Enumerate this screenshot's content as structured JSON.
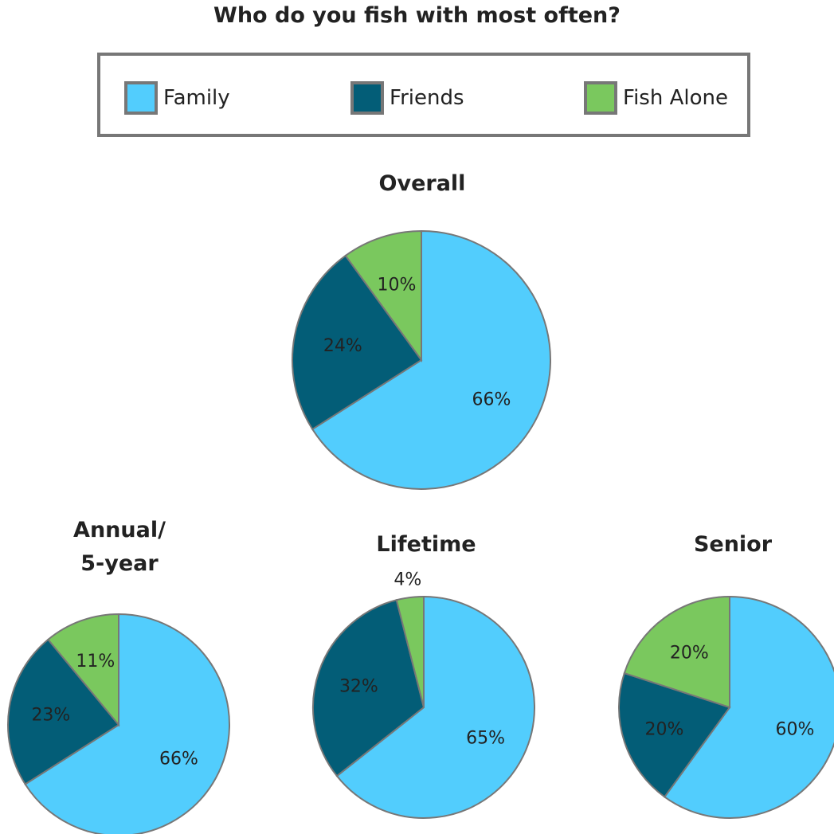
{
  "title": "Who do you fish with most often?",
  "colors": {
    "Family": "#52cdfd",
    "Friends": "#035d77",
    "Fish Alone": "#7ac85e",
    "border": "#777777"
  },
  "legend": [
    {
      "label": "Family",
      "color": "#52cdfd"
    },
    {
      "label": "Friends",
      "color": "#035d77"
    },
    {
      "label": "Fish Alone",
      "color": "#7ac85e"
    }
  ],
  "chart_data": [
    {
      "type": "pie",
      "title": "Overall",
      "categories": [
        "Family",
        "Friends",
        "Fish Alone"
      ],
      "values": [
        66,
        24,
        10
      ],
      "labels": [
        "66%",
        "24%",
        "10%"
      ]
    },
    {
      "type": "pie",
      "title": "Annual/\n5-year",
      "categories": [
        "Family",
        "Friends",
        "Fish Alone"
      ],
      "values": [
        66,
        23,
        11
      ],
      "labels": [
        "66%",
        "23%",
        "11%"
      ]
    },
    {
      "type": "pie",
      "title": "Lifetime",
      "categories": [
        "Family",
        "Friends",
        "Fish Alone"
      ],
      "values": [
        65,
        32,
        4
      ],
      "labels": [
        "65%",
        "32%",
        "4%"
      ]
    },
    {
      "type": "pie",
      "title": "Senior",
      "categories": [
        "Family",
        "Friends",
        "Fish Alone"
      ],
      "values": [
        60,
        20,
        20
      ],
      "labels": [
        "60%",
        "20%",
        "20%"
      ]
    }
  ]
}
